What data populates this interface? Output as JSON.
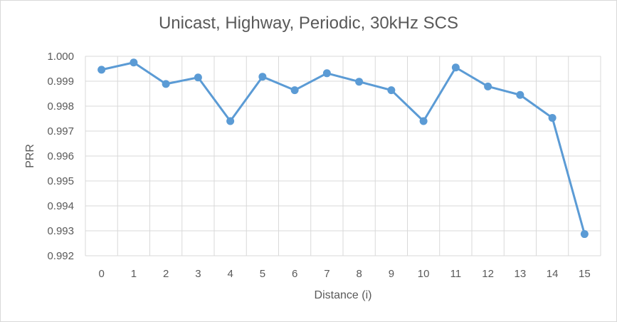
{
  "chart_data": {
    "type": "line",
    "title": "Unicast, Highway, Periodic, 30kHz SCS",
    "xlabel": "Distance (i)",
    "ylabel": "PRR",
    "categories": [
      "0",
      "1",
      "2",
      "3",
      "4",
      "5",
      "6",
      "7",
      "8",
      "9",
      "10",
      "11",
      "12",
      "13",
      "14",
      "15"
    ],
    "series": [
      {
        "values": [
          0.99946,
          0.99975,
          0.99889,
          0.99915,
          0.9974,
          0.99918,
          0.99864,
          0.99932,
          0.99898,
          0.99864,
          0.9974,
          0.99955,
          0.99879,
          0.99845,
          0.99753,
          0.99287
        ]
      }
    ],
    "ylim": [
      0.992,
      1.0
    ],
    "y_ticks": [
      "0.992",
      "0.993",
      "0.994",
      "0.995",
      "0.996",
      "0.997",
      "0.998",
      "0.999",
      "1.000"
    ],
    "grid": true,
    "legend": "none",
    "line_color": "#5b9bd5",
    "grid_color": "#d9d9d9"
  }
}
